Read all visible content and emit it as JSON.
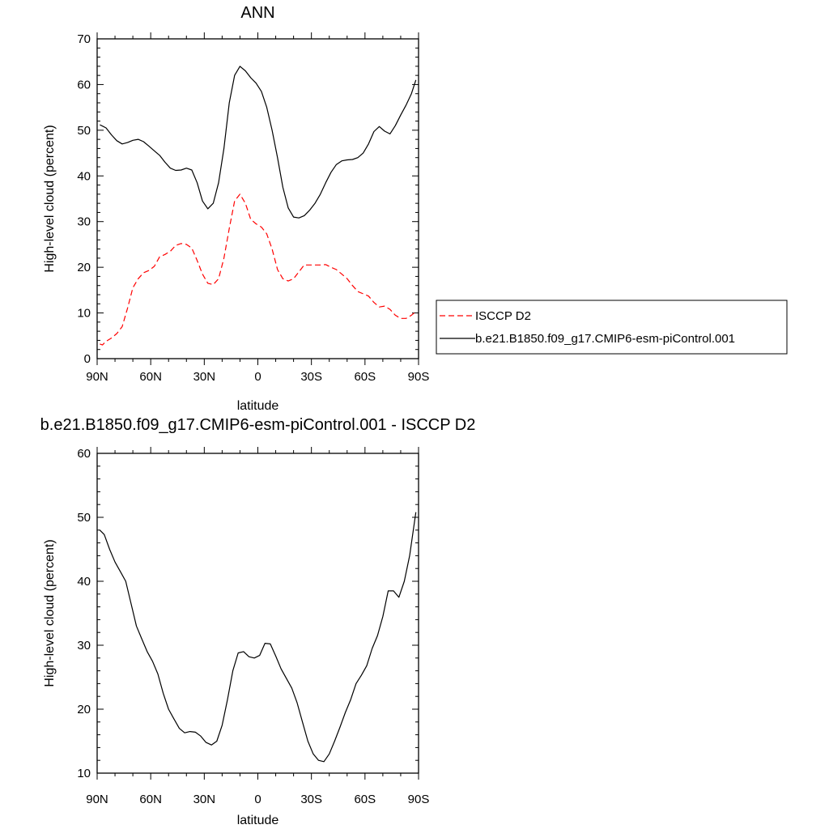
{
  "chart_data": [
    {
      "type": "line",
      "title": "ANN",
      "xlabel": "latitude",
      "ylabel": "High-level cloud (percent)",
      "xlim": [
        90,
        -90
      ],
      "ylim": [
        0,
        70
      ],
      "x_ticks": [
        90,
        60,
        30,
        0,
        -30,
        -60,
        -90
      ],
      "x_tick_labels": [
        "90N",
        "60N",
        "30N",
        "0",
        "30S",
        "60S",
        "90S"
      ],
      "y_ticks": [
        0,
        10,
        20,
        30,
        40,
        50,
        60,
        70
      ],
      "y_tick_labels": [
        "0",
        "10",
        "20",
        "30",
        "40",
        "50",
        "60",
        "70"
      ],
      "grid": false,
      "legend_position": "right, outside plot",
      "series": [
        {
          "name": "ISCCP D2",
          "color": "#ff0000",
          "dash": "dashed",
          "x": [
            88.5,
            87,
            85,
            82,
            79,
            76,
            73,
            70,
            67,
            64,
            61,
            58,
            55,
            52,
            49,
            46,
            43,
            40,
            37,
            34,
            31,
            28,
            25,
            22,
            19,
            16,
            13,
            10,
            7,
            4,
            1,
            -2,
            -5,
            -8,
            -11,
            -14,
            -17,
            -20,
            -23,
            -26,
            -29,
            -32,
            -35,
            -38,
            -41,
            -44,
            -47,
            -50,
            -53,
            -56,
            -59,
            -62,
            -65,
            -68,
            -71,
            -74,
            -77,
            -80,
            -83,
            -86,
            -88.5
          ],
          "y": [
            3.2,
            3.0,
            3.8,
            4.5,
            5.5,
            7.0,
            11.0,
            15.5,
            17.5,
            18.8,
            19.3,
            20.2,
            22.3,
            22.8,
            23.5,
            24.8,
            25.2,
            25.0,
            24.2,
            21.5,
            18.5,
            16.5,
            16.2,
            17.5,
            22.0,
            28.5,
            34.5,
            36.0,
            34.0,
            30.5,
            29.5,
            28.8,
            27.3,
            24.0,
            19.5,
            17.5,
            17.0,
            17.5,
            19.0,
            20.5,
            20.5,
            20.5,
            20.5,
            20.6,
            20.0,
            19.5,
            18.5,
            17.5,
            16.0,
            14.7,
            14.2,
            13.7,
            12.3,
            11.3,
            11.5,
            10.8,
            9.5,
            8.8,
            8.8,
            9.5,
            10.3
          ]
        },
        {
          "name": "b.e21.B1850.f09_g17.CMIP6-esm-piControl.001",
          "color": "#000000",
          "dash": "solid",
          "x": [
            88.5,
            85,
            82,
            79,
            76,
            73,
            70,
            67,
            64,
            61,
            58,
            55,
            52,
            49,
            46,
            43,
            40,
            37,
            34,
            31,
            28,
            25,
            22,
            19,
            16,
            13,
            10,
            7,
            4,
            1,
            -2,
            -5,
            -8,
            -11,
            -14,
            -17,
            -20,
            -23,
            -26,
            -29,
            -32,
            -35,
            -38,
            -41,
            -44,
            -47,
            -50,
            -53,
            -56,
            -59,
            -62,
            -65,
            -68,
            -71,
            -74,
            -77,
            -80,
            -83,
            -86,
            -88.5
          ],
          "y": [
            51.2,
            50.5,
            49.0,
            47.7,
            47.0,
            47.3,
            47.8,
            48.0,
            47.5,
            46.5,
            45.5,
            44.5,
            43.0,
            41.7,
            41.2,
            41.3,
            41.7,
            41.3,
            38.5,
            34.5,
            32.8,
            34.0,
            38.5,
            46.0,
            56.0,
            62.0,
            64.0,
            63.0,
            61.5,
            60.3,
            58.5,
            55.0,
            50.0,
            44.0,
            37.5,
            33.0,
            31.0,
            30.8,
            31.3,
            32.5,
            34.0,
            36.0,
            38.5,
            40.8,
            42.5,
            43.3,
            43.5,
            43.6,
            44.0,
            45.0,
            47.0,
            49.7,
            50.8,
            49.8,
            49.2,
            51.0,
            53.3,
            55.5,
            58.0,
            61.0
          ]
        }
      ]
    },
    {
      "type": "line",
      "title": "b.e21.B1850.f09_g17.CMIP6-esm-piControl.001 - ISCCP D2",
      "xlabel": "latitude",
      "ylabel": "High-level cloud (percent)",
      "xlim": [
        90,
        -90
      ],
      "ylim": [
        10,
        60
      ],
      "x_ticks": [
        90,
        60,
        30,
        0,
        -30,
        -60,
        -90
      ],
      "x_tick_labels": [
        "90N",
        "60N",
        "30N",
        "0",
        "30S",
        "60S",
        "90S"
      ],
      "y_ticks": [
        10,
        20,
        30,
        40,
        50,
        60
      ],
      "y_tick_labels": [
        "10",
        "20",
        "30",
        "40",
        "50",
        "60"
      ],
      "grid": false,
      "series": [
        {
          "color": "#000000",
          "dash": "solid",
          "x": [
            88.5,
            86,
            83,
            80,
            77,
            74,
            71,
            68,
            65,
            62,
            59,
            56,
            53,
            50,
            47,
            44,
            41,
            38,
            35,
            32,
            29,
            26,
            23,
            20,
            17,
            14,
            11,
            8,
            5,
            2,
            -1,
            -4,
            -7,
            -10,
            -13,
            -16,
            -19,
            -22,
            -25,
            -28,
            -31,
            -34,
            -37,
            -40,
            -43,
            -46,
            -49,
            -52,
            -55,
            -58,
            -61,
            -64,
            -67,
            -70,
            -73,
            -76,
            -79,
            -82,
            -85,
            -88.5
          ],
          "y": [
            48.0,
            47.3,
            45.0,
            43.0,
            41.5,
            40.0,
            36.5,
            33.0,
            31.0,
            29.0,
            27.5,
            25.5,
            22.5,
            20.0,
            18.5,
            17.0,
            16.3,
            16.5,
            16.4,
            15.8,
            14.8,
            14.4,
            15.0,
            17.5,
            21.5,
            26.0,
            28.8,
            29.0,
            28.2,
            28.0,
            28.4,
            30.3,
            30.2,
            28.3,
            26.3,
            24.8,
            23.3,
            21.0,
            18.0,
            15.0,
            13.0,
            12.0,
            11.8,
            13.0,
            15.0,
            17.2,
            19.5,
            21.5,
            24.0,
            25.3,
            26.8,
            29.5,
            31.5,
            34.5,
            38.5,
            38.5,
            37.5,
            40.0,
            44.0,
            50.8
          ]
        }
      ]
    }
  ]
}
